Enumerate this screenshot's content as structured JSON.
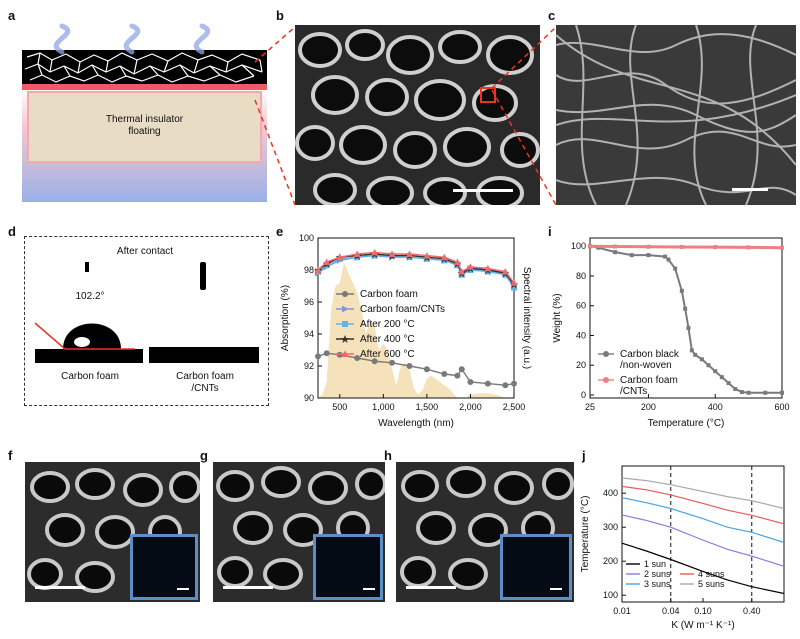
{
  "panels": {
    "a": {
      "letter": "a",
      "insulator_label": "Thermal insulator\nfloating"
    },
    "b": {
      "letter": "b"
    },
    "c": {
      "letter": "c"
    },
    "d": {
      "letter": "d",
      "title": "After contact",
      "angle": "102.2°",
      "left_label": "Carbon foam",
      "right_label": "Carbon foam\n/CNTs"
    },
    "e": {
      "letter": "e"
    },
    "f": {
      "letter": "f"
    },
    "g": {
      "letter": "g"
    },
    "h": {
      "letter": "h"
    },
    "i": {
      "letter": "i"
    },
    "j": {
      "letter": "j"
    }
  },
  "chart_data": [
    {
      "id": "e",
      "type": "line",
      "xlabel": "Wavelength (nm)",
      "ylabel": "Absorption (%)",
      "y2label": "Spectral intensity (a.u.)",
      "xlim": [
        250,
        2500
      ],
      "ylim": [
        90,
        100
      ],
      "xticks": [
        500,
        1000,
        1500,
        2000,
        2500
      ],
      "xticklabels": [
        "500",
        "1,000",
        "1,500",
        "2,000",
        "2,500"
      ],
      "yticks": [
        90,
        92,
        94,
        96,
        98,
        100
      ],
      "series": [
        {
          "name": "Carbon foam",
          "color": "#7a7a7a",
          "marker": "circle",
          "x": [
            250,
            350,
            500,
            700,
            900,
            1100,
            1300,
            1500,
            1700,
            1850,
            1900,
            2000,
            2200,
            2400,
            2500
          ],
          "y": [
            92.6,
            92.8,
            92.7,
            92.5,
            92.3,
            92.2,
            92.0,
            91.8,
            91.5,
            91.4,
            91.8,
            91.0,
            90.9,
            90.8,
            90.9
          ]
        },
        {
          "name": "Carbon foam/CNTs",
          "color": "#7f95e0",
          "marker": "triangle-right",
          "x": [
            250,
            350,
            500,
            700,
            900,
            1100,
            1300,
            1500,
            1700,
            1850,
            1900,
            2000,
            2200,
            2400,
            2500
          ],
          "y": [
            97.8,
            98.2,
            98.6,
            98.8,
            98.9,
            98.8,
            98.8,
            98.7,
            98.6,
            98.3,
            97.8,
            98.1,
            98.0,
            97.8,
            97.0
          ]
        },
        {
          "name": "After 200 °C",
          "color": "#5fb5e8",
          "marker": "square",
          "x": [
            250,
            350,
            500,
            700,
            900,
            1100,
            1300,
            1500,
            1700,
            1850,
            1900,
            2000,
            2200,
            2400,
            2500
          ],
          "y": [
            97.9,
            98.3,
            98.7,
            98.8,
            98.9,
            98.9,
            98.8,
            98.7,
            98.6,
            98.3,
            97.7,
            98.0,
            97.9,
            97.7,
            96.9
          ]
        },
        {
          "name": "After 400 °C",
          "color": "#333333",
          "marker": "star",
          "x": [
            250,
            350,
            500,
            700,
            900,
            1100,
            1300,
            1500,
            1700,
            1850,
            1900,
            2000,
            2200,
            2400,
            2500
          ],
          "y": [
            98.0,
            98.4,
            98.8,
            98.9,
            99.0,
            98.9,
            98.9,
            98.8,
            98.7,
            98.4,
            97.8,
            98.1,
            98.0,
            97.8,
            97.1
          ]
        },
        {
          "name": "After 600 °C",
          "color": "#ef6a6a",
          "marker": "triangle-up",
          "x": [
            250,
            350,
            500,
            700,
            900,
            1100,
            1300,
            1500,
            1700,
            1850,
            1900,
            2000,
            2200,
            2400,
            2500
          ],
          "y": [
            98.0,
            98.5,
            98.8,
            99.0,
            99.1,
            99.0,
            99.0,
            98.9,
            98.8,
            98.5,
            97.9,
            98.2,
            98.1,
            97.9,
            97.2
          ]
        }
      ]
    },
    {
      "id": "i",
      "type": "line",
      "xlabel": "Temperature (°C)",
      "ylabel": "Weight (%)",
      "xlim": [
        25,
        600
      ],
      "ylim": [
        0,
        100
      ],
      "xticks": [
        25,
        200,
        400,
        600
      ],
      "yticks": [
        0,
        20,
        40,
        60,
        80,
        100
      ],
      "series": [
        {
          "name": "Carbon black\n/non-woven",
          "color": "#7a7a7a",
          "x": [
            25,
            50,
            100,
            150,
            200,
            250,
            260,
            280,
            300,
            310,
            320,
            330,
            340,
            360,
            380,
            400,
            420,
            440,
            460,
            480,
            500,
            550,
            600
          ],
          "y": [
            100,
            99,
            96,
            94,
            94,
            93,
            91,
            85,
            70,
            58,
            45,
            30,
            27,
            24,
            20,
            16,
            12,
            8,
            4,
            2,
            1.5,
            1.5,
            1.5
          ]
        },
        {
          "name": "Carbon foam\n/CNTs",
          "color": "#ef8080",
          "x": [
            25,
            100,
            200,
            300,
            400,
            500,
            600
          ],
          "y": [
            100,
            99.8,
            99.6,
            99.5,
            99.4,
            99.2,
            99.0
          ]
        }
      ]
    },
    {
      "id": "j",
      "type": "line",
      "xlabel": "K (W m⁻¹ K⁻¹)",
      "ylabel": "Temperature (°C)",
      "xscale": "log",
      "xlim": [
        0.01,
        1
      ],
      "ylim": [
        80,
        480
      ],
      "xticks": [
        0.01,
        0.04,
        0.1,
        0.4
      ],
      "xticklabels": [
        "0.01",
        "0.04",
        "0.10",
        "0.40"
      ],
      "yticks": [
        100,
        200,
        300,
        400
      ],
      "vlines": [
        0.04,
        0.4
      ],
      "series": [
        {
          "name": "1 sun",
          "color": "#000000",
          "x": [
            0.01,
            0.02,
            0.04,
            0.1,
            0.2,
            0.4,
            1
          ],
          "y": [
            253,
            230,
            205,
            170,
            145,
            125,
            105
          ]
        },
        {
          "name": "2 suns",
          "color": "#7f7fe8",
          "x": [
            0.01,
            0.02,
            0.04,
            0.1,
            0.2,
            0.4,
            1
          ],
          "y": [
            336,
            320,
            300,
            262,
            235,
            215,
            185
          ]
        },
        {
          "name": "3 suns",
          "color": "#4aa3e6",
          "x": [
            0.01,
            0.02,
            0.04,
            0.1,
            0.2,
            0.4,
            1
          ],
          "y": [
            387,
            372,
            355,
            325,
            300,
            285,
            255
          ]
        },
        {
          "name": "4 suns",
          "color": "#e85a5a",
          "x": [
            0.01,
            0.02,
            0.04,
            0.1,
            0.2,
            0.4,
            1
          ],
          "y": [
            420,
            410,
            395,
            370,
            350,
            335,
            310
          ]
        },
        {
          "name": "5 suns",
          "color": "#aaaaaa",
          "x": [
            0.01,
            0.02,
            0.04,
            0.1,
            0.2,
            0.4,
            1
          ],
          "y": [
            445,
            437,
            425,
            405,
            390,
            378,
            355
          ]
        }
      ]
    }
  ]
}
